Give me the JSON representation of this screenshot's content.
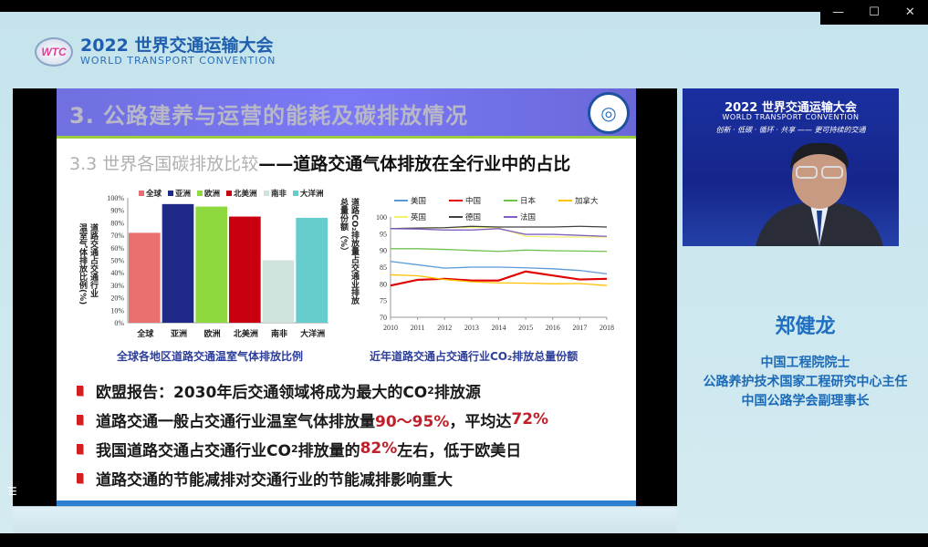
{
  "window": {
    "minimize": "—",
    "maximize": "☐",
    "close": "✕"
  },
  "brand": {
    "logo_text": "WTC",
    "title": "2022 世界交通运输大会",
    "subtitle": "WORLD TRANSPORT CONVENTION"
  },
  "slide": {
    "title": "3. 公路建养与运营的能耗及碳排放情况",
    "subtitle_gray": "3.3 世界各国碳排放比较",
    "subtitle_black": "——道路交通气体排放在全行业中的占比",
    "bullets": [
      {
        "parts": [
          {
            "t": "欧盟报告：2030年后交通领域将成为最大的CO"
          },
          {
            "sub": "2"
          },
          {
            "t": "排放源"
          }
        ]
      },
      {
        "parts": [
          {
            "t": "道路交通一般占交通行业温室气体排放量"
          },
          {
            "r": "90～95%"
          },
          {
            "t": "，平均达"
          },
          {
            "r": "72%"
          }
        ]
      },
      {
        "parts": [
          {
            "t": "我国道路交通占交通行业CO"
          },
          {
            "sub": "2"
          },
          {
            "t": "排放量的"
          },
          {
            "r": "82%"
          },
          {
            "t": "左右，低于欧美日"
          }
        ]
      },
      {
        "parts": [
          {
            "t": "道路交通的节能减排对交通行业的节能减排影响重大"
          }
        ]
      }
    ]
  },
  "chart_data": [
    {
      "type": "bar",
      "title": "全球各地区道路交通温室气体排放比例",
      "ylabel": "道路交通占交通行业温室气体排放比例(%)",
      "ylabel_lines": [
        "道路交通占交通行业",
        "温室气体排放比例(%)"
      ],
      "categories": [
        "全球",
        "亚洲",
        "欧洲",
        "北美洲",
        "南非",
        "大洋洲"
      ],
      "values": [
        72,
        95,
        93,
        85,
        50,
        84
      ],
      "colors": [
        "#e87070",
        "#1f2a88",
        "#8ed840",
        "#c80010",
        "#cfe3dc",
        "#66cccc"
      ],
      "yticks": [
        "0%",
        "10%",
        "20%",
        "30%",
        "40%",
        "50%",
        "60%",
        "70%",
        "80%",
        "90%",
        "100%"
      ],
      "ylim": [
        0,
        100
      ],
      "legend": "top",
      "grid": false
    },
    {
      "type": "line",
      "title": "近年道路交通占交通行业CO₂排放总量份额",
      "ylabel": "道路CO₂排放量占交通业排放总量份额（%）",
      "ylabel_lines": [
        "道路CO₂排放量占交通业排放",
        "总量份额（%）"
      ],
      "x": [
        2010,
        2011,
        2012,
        2013,
        2014,
        2015,
        2016,
        2017,
        2018
      ],
      "ylim": [
        70,
        100
      ],
      "yticks": [
        70,
        75,
        80,
        85,
        90,
        95,
        100
      ],
      "legend": "top",
      "grid": false,
      "series": [
        {
          "name": "美国",
          "color": "#5b9bd5",
          "values": [
            86.7,
            85.7,
            84.7,
            85,
            85,
            84.8,
            84.5,
            84,
            83
          ]
        },
        {
          "name": "中国",
          "color": "#e00000",
          "values": [
            79.5,
            81.2,
            81.5,
            81,
            81,
            83.7,
            82.5,
            81.3,
            81.5
          ]
        },
        {
          "name": "日本",
          "color": "#70c050",
          "values": [
            90.5,
            90.5,
            90.3,
            90,
            89.7,
            90.1,
            89.9,
            89.8,
            89.7
          ]
        },
        {
          "name": "加拿大",
          "color": "#ffc000",
          "values": [
            82.7,
            82.4,
            81.3,
            80.6,
            80.3,
            80.2,
            80,
            80.1,
            79.5
          ]
        },
        {
          "name": "英国",
          "color": "#f4f070",
          "values": [
            96.5,
            96.7,
            96.8,
            96.9,
            96.8,
            94.2,
            94,
            94,
            94
          ]
        },
        {
          "name": "德国",
          "color": "#404040",
          "values": [
            96.5,
            96.7,
            96.8,
            97.2,
            97,
            97,
            97,
            97.2,
            97
          ]
        },
        {
          "name": "法国",
          "color": "#8060c0",
          "values": [
            96.5,
            96.4,
            96.1,
            96.1,
            96.5,
            94.8,
            94.8,
            94.5,
            94.2
          ]
        }
      ]
    }
  ],
  "video": {
    "title": "2022 世界交通运输大会",
    "subtitle": "WORLD TRANSPORT CONVENTION",
    "slogan": "创新 · 低碳 · 循环 · 共享 —— 更可持续的交通"
  },
  "speaker": {
    "name": "郑健龙",
    "titles": [
      "中国工程院院士",
      "公路养护技术国家工程研究中心主任",
      "中国公路学会副理事长"
    ]
  }
}
